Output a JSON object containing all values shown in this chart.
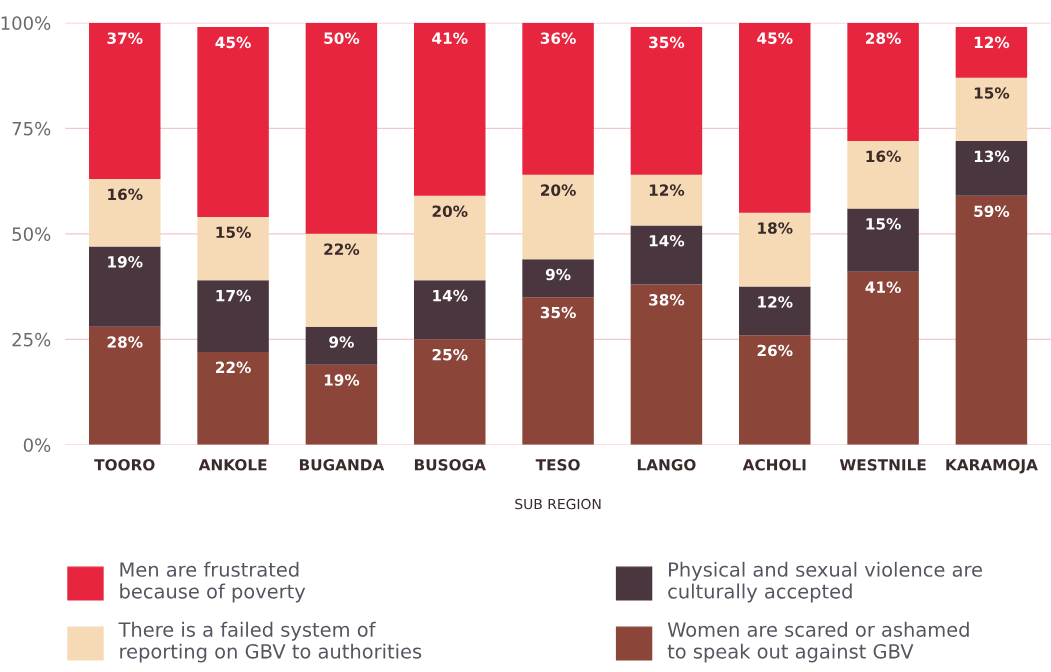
{
  "chart_data": {
    "type": "bar",
    "stacked": true,
    "xlabel": "SUB REGION",
    "categories": [
      "TOORO",
      "ANKOLE",
      "BUGANDA",
      "BUSOGA",
      "TESO",
      "LANGO",
      "ACHOLI",
      "WESTNILE",
      "KARAMOJA"
    ],
    "series": [
      {
        "name": "Women are scared or ashamed\nto speak out against GBV",
        "color": "#8b4539",
        "values": [
          28,
          22,
          19,
          25,
          35,
          38,
          26,
          41,
          59
        ],
        "value_labels": [
          "28%",
          "22%",
          "19%",
          "25%",
          "35%",
          "38%",
          "26%",
          "41%",
          "59%"
        ]
      },
      {
        "name": "Physical and sexual violence are\nculturally accepted",
        "color": "#4a363e",
        "values": [
          19,
          17,
          9,
          14,
          9,
          14,
          11.5,
          15,
          13
        ],
        "value_labels": [
          "19%",
          "17%",
          "9%",
          "14%",
          "9%",
          "14%",
          "12%",
          "15%",
          "13%"
        ]
      },
      {
        "name": "There is a failed system of\nreporting on GBV to authorities",
        "color": "#f5dab5",
        "values": [
          16,
          15,
          22,
          20,
          20,
          12,
          17.5,
          16,
          15
        ],
        "value_labels": [
          "16%",
          "15%",
          "22%",
          "20%",
          "20%",
          "12%",
          "18%",
          "16%",
          "15%"
        ]
      },
      {
        "name": "Men are frustrated\nbecause of poverty",
        "color": "#e8253e",
        "values": [
          37,
          45,
          50,
          41,
          36,
          35,
          45,
          28,
          12
        ],
        "value_labels": [
          "37%",
          "45%",
          "50%",
          "41%",
          "36%",
          "35%",
          "45%",
          "28%",
          "12%"
        ]
      }
    ],
    "ylim": [
      0,
      100
    ],
    "yticks": [
      {
        "value": 0,
        "label": "0%"
      },
      {
        "value": 25,
        "label": "25%"
      },
      {
        "value": 50,
        "label": "50%"
      },
      {
        "value": 75,
        "label": "75%"
      },
      {
        "value": 100,
        "label": "100%"
      }
    ],
    "grid": "y",
    "legend": "bottom"
  }
}
